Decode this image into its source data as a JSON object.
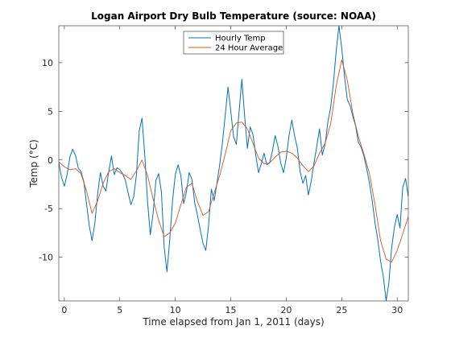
{
  "chart_data": {
    "type": "line",
    "title": "Logan Airport Dry Bulb Temperature (source: NOAA)",
    "xlabel": "Time elapsed from Jan 1, 2011 (days)",
    "ylabel": "Temp (°C)",
    "xlim": [
      -0.5,
      31
    ],
    "ylim": [
      -14.5,
      13.8
    ],
    "xticks": [
      0,
      5,
      10,
      15,
      20,
      25,
      30
    ],
    "yticks": [
      -10,
      -5,
      0,
      5,
      10
    ],
    "grid": false,
    "legend_position": "top-center",
    "series": [
      {
        "name": "Hourly Temp",
        "color": "#0072bd",
        "points": [
          [
            -0.5,
            -0.3
          ],
          [
            -0.25,
            -1.8
          ],
          [
            0,
            -2.7
          ],
          [
            0.25,
            -1.5
          ],
          [
            0.5,
            0.3
          ],
          [
            0.75,
            1.1
          ],
          [
            1,
            0.5
          ],
          [
            1.25,
            -0.8
          ],
          [
            1.5,
            -1.2
          ],
          [
            1.75,
            -2.2
          ],
          [
            2,
            -4.5
          ],
          [
            2.25,
            -6.8
          ],
          [
            2.5,
            -8.3
          ],
          [
            2.75,
            -6.5
          ],
          [
            3,
            -3.5
          ],
          [
            3.25,
            -1.3
          ],
          [
            3.5,
            -2.7
          ],
          [
            3.75,
            -3.2
          ],
          [
            4,
            -1.2
          ],
          [
            4.25,
            0.4
          ],
          [
            4.5,
            -1.5
          ],
          [
            4.75,
            -0.8
          ],
          [
            5,
            -1
          ],
          [
            5.25,
            -1.4
          ],
          [
            5.5,
            -2.1
          ],
          [
            5.75,
            -3.4
          ],
          [
            6,
            -4.6
          ],
          [
            6.25,
            -3.8
          ],
          [
            6.5,
            -1.5
          ],
          [
            6.75,
            3
          ],
          [
            7,
            4.3
          ],
          [
            7.25,
            0.5
          ],
          [
            7.5,
            -4.3
          ],
          [
            7.75,
            -7.7
          ],
          [
            8,
            -5.5
          ],
          [
            8.25,
            -2.1
          ],
          [
            8.5,
            -1.4
          ],
          [
            8.75,
            -3.3
          ],
          [
            9,
            -9
          ],
          [
            9.25,
            -11.5
          ],
          [
            9.5,
            -8.2
          ],
          [
            9.75,
            -4.2
          ],
          [
            10,
            -1.5
          ],
          [
            10.25,
            -0.5
          ],
          [
            10.5,
            -1.6
          ],
          [
            10.75,
            -4.5
          ],
          [
            11,
            -3.3
          ],
          [
            11.25,
            -1.3
          ],
          [
            11.5,
            -2
          ],
          [
            11.75,
            -4.4
          ],
          [
            12,
            -5.7
          ],
          [
            12.25,
            -7.2
          ],
          [
            12.5,
            -8.6
          ],
          [
            12.75,
            -9.3
          ],
          [
            13,
            -6.7
          ],
          [
            13.25,
            -3
          ],
          [
            13.5,
            -4.2
          ],
          [
            13.75,
            -2.4
          ],
          [
            14,
            -0.5
          ],
          [
            14.25,
            1.8
          ],
          [
            14.5,
            4.6
          ],
          [
            14.75,
            7.5
          ],
          [
            15,
            5
          ],
          [
            15.25,
            2.4
          ],
          [
            15.5,
            1.6
          ],
          [
            15.75,
            5
          ],
          [
            16,
            8.3
          ],
          [
            16.25,
            4.5
          ],
          [
            16.5,
            1.2
          ],
          [
            16.75,
            3.4
          ],
          [
            17,
            2.6
          ],
          [
            17.25,
            0.5
          ],
          [
            17.5,
            -1.3
          ],
          [
            17.75,
            -0.4
          ],
          [
            18,
            0.7
          ],
          [
            18.25,
            -0.5
          ],
          [
            18.5,
            -0.3
          ],
          [
            18.75,
            0.9
          ],
          [
            19,
            2.5
          ],
          [
            19.25,
            1.4
          ],
          [
            19.5,
            -0.3
          ],
          [
            19.75,
            -1.3
          ],
          [
            20,
            0.2
          ],
          [
            20.25,
            2.5
          ],
          [
            20.5,
            4.1
          ],
          [
            20.75,
            2.5
          ],
          [
            21,
            1.2
          ],
          [
            21.25,
            -1.2
          ],
          [
            21.5,
            -2.4
          ],
          [
            21.75,
            -1.6
          ],
          [
            22,
            -3.6
          ],
          [
            22.25,
            -2.2
          ],
          [
            22.5,
            -0.3
          ],
          [
            22.75,
            1.4
          ],
          [
            23,
            3.2
          ],
          [
            23.25,
            0.5
          ],
          [
            23.5,
            1.6
          ],
          [
            23.75,
            3.9
          ],
          [
            24,
            5.4
          ],
          [
            24.25,
            7.9
          ],
          [
            24.5,
            11.2
          ],
          [
            24.75,
            13.8
          ],
          [
            25,
            11.5
          ],
          [
            25.25,
            8.6
          ],
          [
            25.5,
            6.2
          ],
          [
            25.75,
            5.6
          ],
          [
            26,
            4.5
          ],
          [
            26.25,
            3.5
          ],
          [
            26.5,
            1.8
          ],
          [
            26.75,
            1.3
          ],
          [
            27,
            0.4
          ],
          [
            27.25,
            -0.9
          ],
          [
            27.5,
            -2.4
          ],
          [
            27.75,
            -4.2
          ],
          [
            28,
            -6.5
          ],
          [
            28.25,
            -8.2
          ],
          [
            28.5,
            -10.4
          ],
          [
            28.75,
            -12
          ],
          [
            29,
            -14.5
          ],
          [
            29.25,
            -12.6
          ],
          [
            29.5,
            -9
          ],
          [
            29.75,
            -6.9
          ],
          [
            30,
            -5.6
          ],
          [
            30.25,
            -7
          ],
          [
            30.5,
            -2.8
          ],
          [
            30.75,
            -1.9
          ],
          [
            31,
            -3.8
          ]
        ]
      },
      {
        "name": "24 Hour Average",
        "color": "#d95319",
        "points": [
          [
            -0.5,
            -0.2
          ],
          [
            0,
            -0.7
          ],
          [
            0.5,
            -1
          ],
          [
            1,
            -0.9
          ],
          [
            1.5,
            -1.4
          ],
          [
            2,
            -3.2
          ],
          [
            2.5,
            -5.5
          ],
          [
            3,
            -4.2
          ],
          [
            3.5,
            -2.4
          ],
          [
            4,
            -1.2
          ],
          [
            4.5,
            -0.9
          ],
          [
            5,
            -1.3
          ],
          [
            5.5,
            -1.6
          ],
          [
            6,
            -2
          ],
          [
            6.5,
            -1.1
          ],
          [
            7,
            0
          ],
          [
            7.5,
            -1.6
          ],
          [
            8,
            -4
          ],
          [
            8.5,
            -6.2
          ],
          [
            9,
            -7.9
          ],
          [
            9.5,
            -7.5
          ],
          [
            10,
            -6.5
          ],
          [
            10.5,
            -4.6
          ],
          [
            11,
            -2.8
          ],
          [
            11.5,
            -2.4
          ],
          [
            12,
            -4.3
          ],
          [
            12.5,
            -5.7
          ],
          [
            13,
            -5.3
          ],
          [
            13.5,
            -3.4
          ],
          [
            14,
            -1.6
          ],
          [
            14.5,
            0.6
          ],
          [
            15,
            3
          ],
          [
            15.5,
            3.8
          ],
          [
            16,
            3.9
          ],
          [
            16.5,
            3.2
          ],
          [
            17,
            1.7
          ],
          [
            17.5,
            0.2
          ],
          [
            18,
            -0.4
          ],
          [
            18.5,
            -0.3
          ],
          [
            19,
            0.3
          ],
          [
            19.5,
            0.8
          ],
          [
            20,
            0.9
          ],
          [
            20.5,
            0.7
          ],
          [
            21,
            0.2
          ],
          [
            21.5,
            -0.6
          ],
          [
            22,
            -1.2
          ],
          [
            22.5,
            -0.6
          ],
          [
            23,
            0.7
          ],
          [
            23.5,
            1.7
          ],
          [
            24,
            3.7
          ],
          [
            24.5,
            7.6
          ],
          [
            25,
            10.3
          ],
          [
            25.5,
            8.2
          ],
          [
            26,
            4.8
          ],
          [
            26.5,
            2.4
          ],
          [
            27,
            0.6
          ],
          [
            27.5,
            -1.4
          ],
          [
            28,
            -4.6
          ],
          [
            28.5,
            -8.3
          ],
          [
            29,
            -10.2
          ],
          [
            29.5,
            -10.5
          ],
          [
            30,
            -9.3
          ],
          [
            30.5,
            -7.6
          ],
          [
            31,
            -5.8
          ]
        ]
      }
    ]
  }
}
